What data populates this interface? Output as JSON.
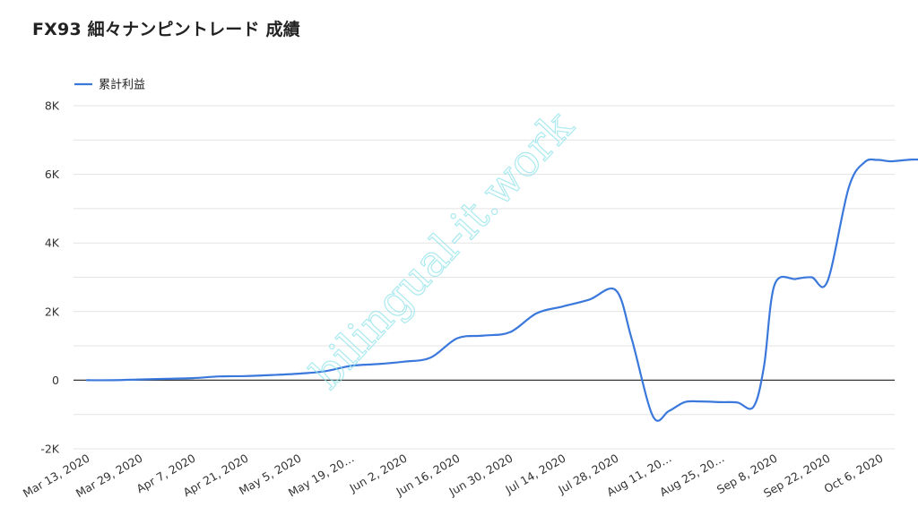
{
  "chart_data": {
    "type": "line",
    "title": "FX93 細々ナンピントレード 成績",
    "legend": {
      "position": "top-left"
    },
    "grid": true,
    "ylim": [
      -2000,
      8000
    ],
    "y_ticks": [
      -2000,
      0,
      2000,
      4000,
      6000,
      8000
    ],
    "y_tick_labels": [
      "-2K",
      "0",
      "2K",
      "4K",
      "6K",
      "8K"
    ],
    "x_tick_labels": [
      "Mar 13, 2020",
      "Mar 29, 2020",
      "Apr 7, 2020",
      "Apr 21, 2020",
      "May 5, 2020",
      "May 19, 20…",
      "Jun 2, 2020",
      "Jun 16, 2020",
      "Jun 30, 2020",
      "Jul 14, 2020",
      "Jul 28, 2020",
      "Aug 11, 20…",
      "Aug 25, 20…",
      "Sep 8, 2020",
      "Sep 22, 2020",
      "Oct 6, 2020"
    ],
    "series": [
      {
        "name": "累計利益",
        "color": "#3b78dc",
        "x": [
          0,
          0.5,
          1,
          1.5,
          2,
          2.5,
          3,
          3.5,
          4,
          4.5,
          5,
          5.5,
          6,
          6.5,
          7,
          7.5,
          8,
          8.5,
          9,
          9.5,
          10,
          10.3,
          10.7,
          11,
          11.3,
          11.6,
          12,
          12.3,
          12.6,
          12.8,
          13,
          13.4,
          13.7,
          14,
          14.4,
          14.7,
          14.95,
          15.2,
          15.6,
          16
        ],
        "values": [
          0,
          0,
          20,
          40,
          60,
          110,
          120,
          150,
          190,
          260,
          420,
          470,
          540,
          660,
          1220,
          1300,
          1400,
          1950,
          2150,
          2350,
          2620,
          1200,
          -1050,
          -900,
          -640,
          -620,
          -640,
          -650,
          -780,
          400,
          2780,
          2950,
          3000,
          2880,
          5600,
          6350,
          6420,
          6380,
          6430,
          6420
        ]
      }
    ],
    "watermark": "bilingual-it.work"
  }
}
